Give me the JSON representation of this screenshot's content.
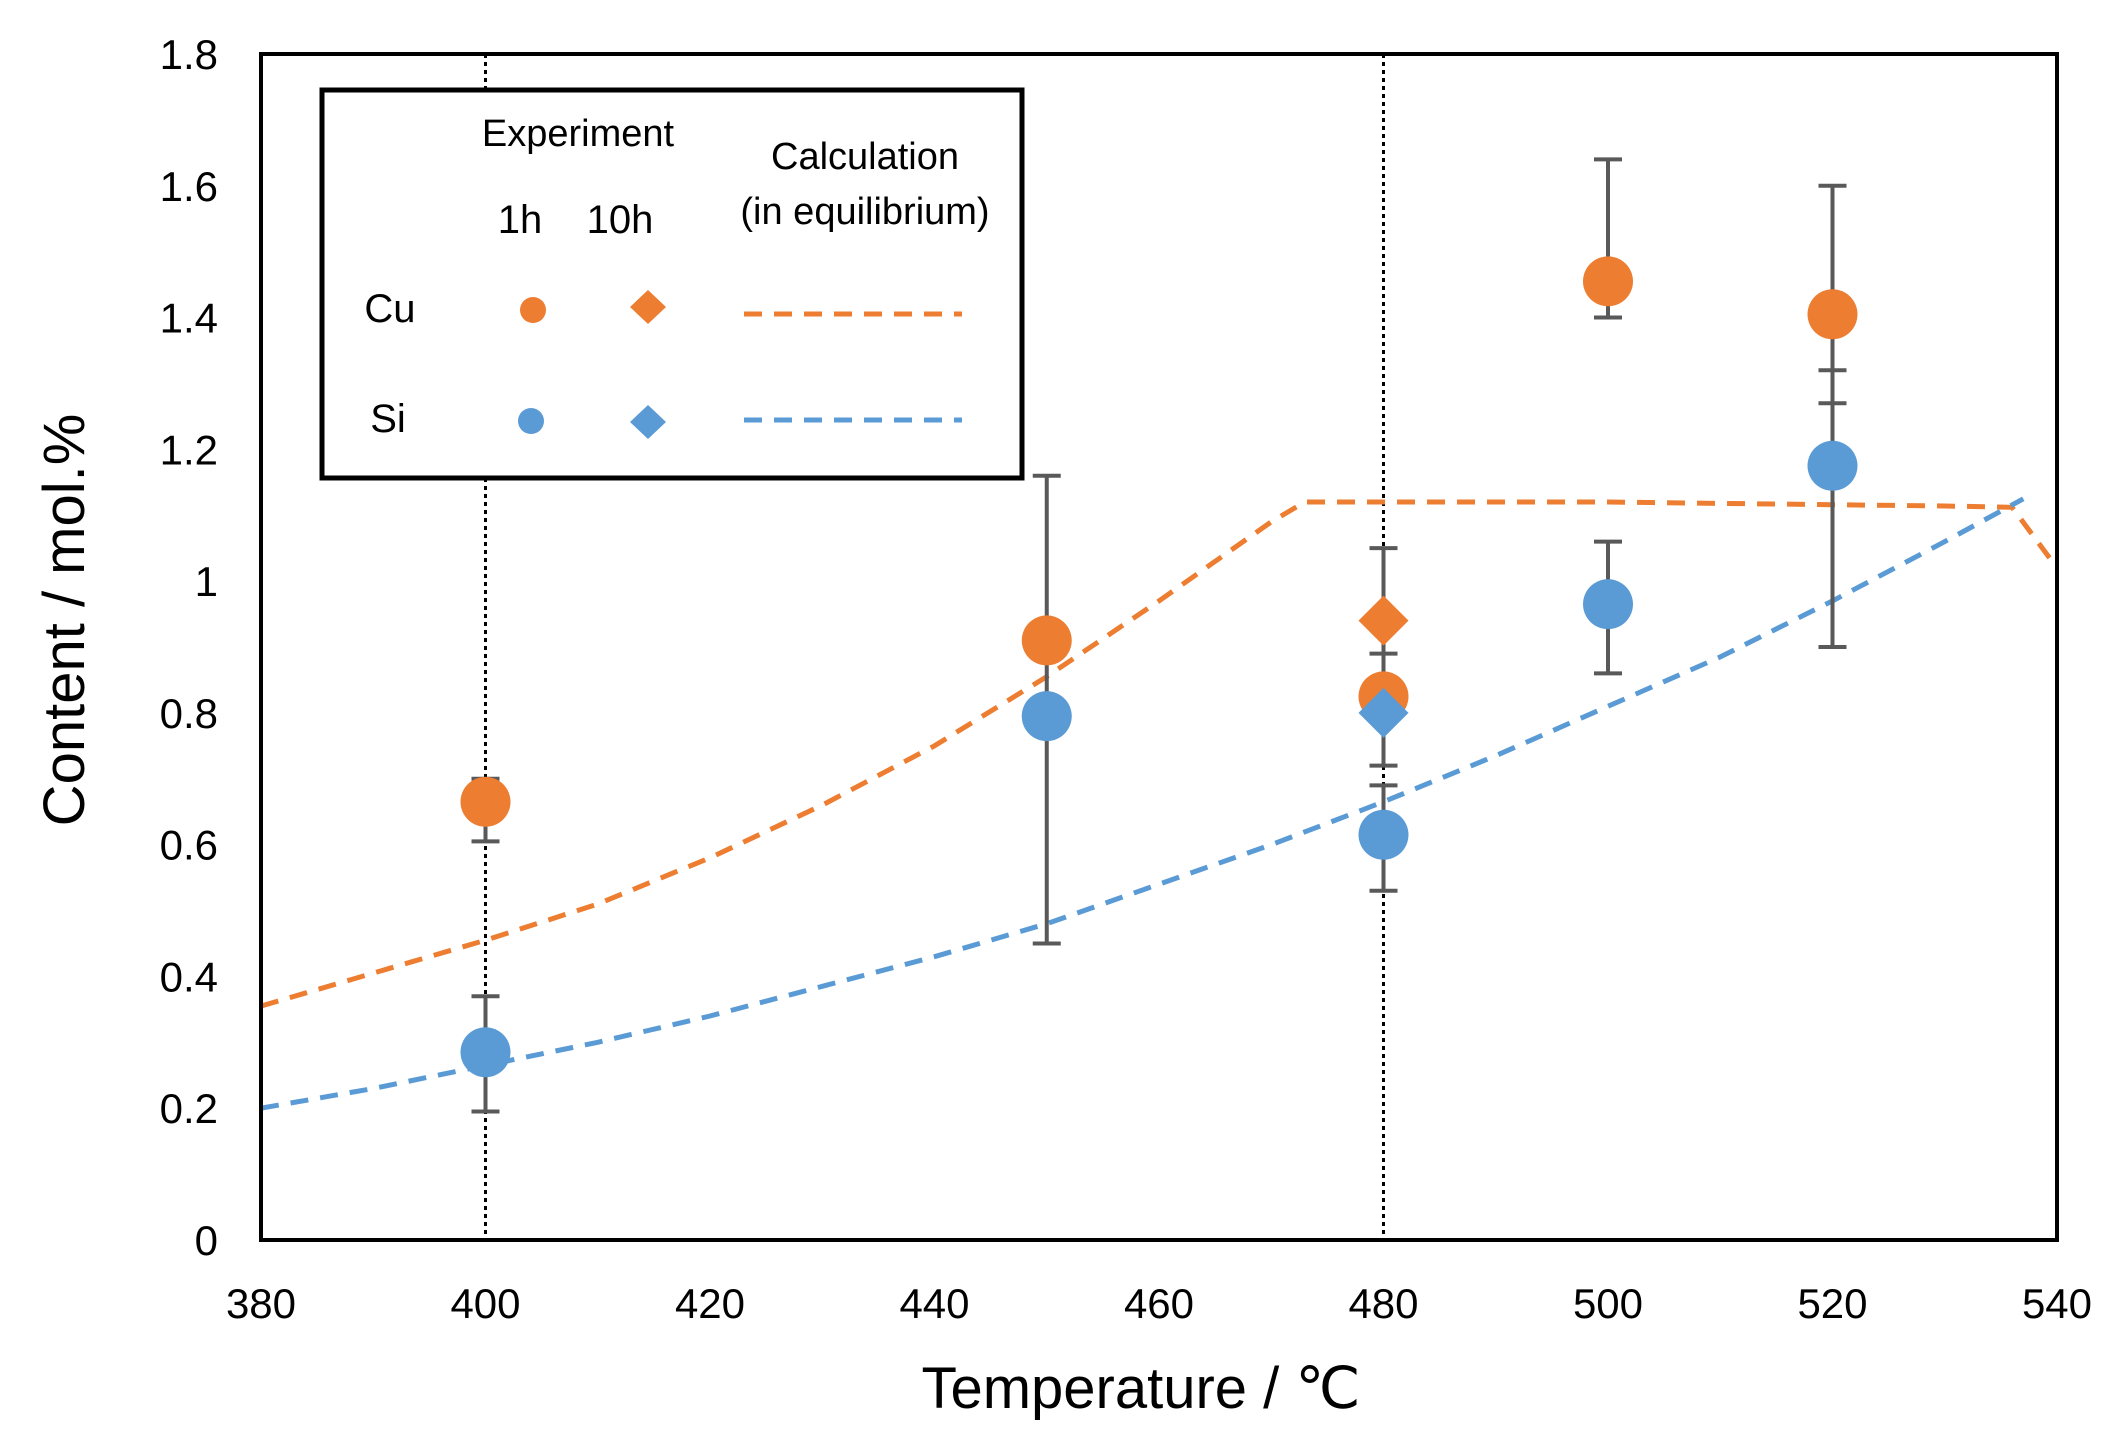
{
  "chart_data": {
    "type": "scatter",
    "title": "",
    "xlabel": "Temperature / ℃",
    "ylabel": "Content / mol.%",
    "xlim": [
      380,
      540
    ],
    "ylim": [
      0,
      1.8
    ],
    "xticks": [
      380,
      400,
      420,
      440,
      460,
      480,
      500,
      520,
      540
    ],
    "yticks": [
      0,
      0.2,
      0.4,
      0.6,
      0.8,
      1,
      1.2,
      1.4,
      1.6,
      1.8
    ],
    "ytick_labels": [
      "0",
      "0.2",
      "0.4",
      "0.6",
      "0.8",
      "1",
      "1.2",
      "1.4",
      "1.6",
      "1.8"
    ],
    "grid": false,
    "reference_lines_x": [
      400,
      480
    ],
    "colors": {
      "cu": "#ED7D31",
      "si": "#5B9BD5",
      "errorbar": "#595959",
      "axis": "#000000"
    },
    "legend": {
      "placement": "top-left",
      "experiment_header": "Experiment",
      "calculation_header": "Calculation",
      "calculation_subheader": "(in equilibrium)",
      "col_1h": "1h",
      "col_10h": "10h",
      "row_cu": "Cu",
      "row_si": "Si"
    },
    "series": [
      {
        "name": "Cu 1h",
        "element": "Cu",
        "kind": "experiment",
        "marker": "circle",
        "points": [
          {
            "x": 400,
            "y": 0.665,
            "err_low": 0.605,
            "err_high": 0.7
          },
          {
            "x": 450,
            "y": 0.91,
            "err_low": 0.91,
            "err_high": 0.91
          },
          {
            "x": 480,
            "y": 0.825,
            "err_low": 0.825,
            "err_high": 0.825
          },
          {
            "x": 500,
            "y": 1.455,
            "err_low": 1.4,
            "err_high": 1.64
          },
          {
            "x": 520,
            "y": 1.405,
            "err_low": 1.27,
            "err_high": 1.6
          }
        ]
      },
      {
        "name": "Cu 10h",
        "element": "Cu",
        "kind": "experiment",
        "marker": "diamond",
        "points": [
          {
            "x": 480,
            "y": 0.94,
            "err_low": 0.83,
            "err_high": 1.05
          }
        ]
      },
      {
        "name": "Si 1h",
        "element": "Si",
        "kind": "experiment",
        "marker": "circle",
        "points": [
          {
            "x": 400,
            "y": 0.285,
            "err_low": 0.195,
            "err_high": 0.37
          },
          {
            "x": 450,
            "y": 0.795,
            "err_low": 0.45,
            "err_high": 1.16
          },
          {
            "x": 480,
            "y": 0.615,
            "err_low": 0.53,
            "err_high": 0.69
          },
          {
            "x": 500,
            "y": 0.965,
            "err_low": 0.86,
            "err_high": 1.06
          },
          {
            "x": 520,
            "y": 1.175,
            "err_low": 0.9,
            "err_high": 1.32
          }
        ]
      },
      {
        "name": "Si 10h",
        "element": "Si",
        "kind": "experiment",
        "marker": "diamond",
        "points": [
          {
            "x": 480,
            "y": 0.8,
            "err_low": 0.72,
            "err_high": 0.89
          }
        ]
      },
      {
        "name": "Cu calculation (in equilibrium)",
        "element": "Cu",
        "kind": "calculation",
        "marker": "dashed-line",
        "x": [
          380,
          390,
          400,
          410,
          420,
          430,
          440,
          450,
          460,
          470,
          473,
          480,
          490,
          500,
          510,
          520,
          530,
          536,
          540
        ],
        "y": [
          0.355,
          0.405,
          0.455,
          0.51,
          0.58,
          0.66,
          0.75,
          0.855,
          0.97,
          1.09,
          1.12,
          1.12,
          1.12,
          1.12,
          1.118,
          1.116,
          1.114,
          1.112,
          1.02
        ]
      },
      {
        "name": "Si calculation (in equilibrium)",
        "element": "Si",
        "kind": "calculation",
        "marker": "dashed-line",
        "x": [
          380,
          390,
          400,
          410,
          420,
          430,
          440,
          450,
          460,
          470,
          480,
          490,
          500,
          510,
          520,
          530,
          537
        ],
        "y": [
          0.2,
          0.23,
          0.265,
          0.3,
          0.34,
          0.385,
          0.43,
          0.48,
          0.54,
          0.6,
          0.665,
          0.735,
          0.81,
          0.885,
          0.97,
          1.06,
          1.125
        ]
      }
    ]
  }
}
